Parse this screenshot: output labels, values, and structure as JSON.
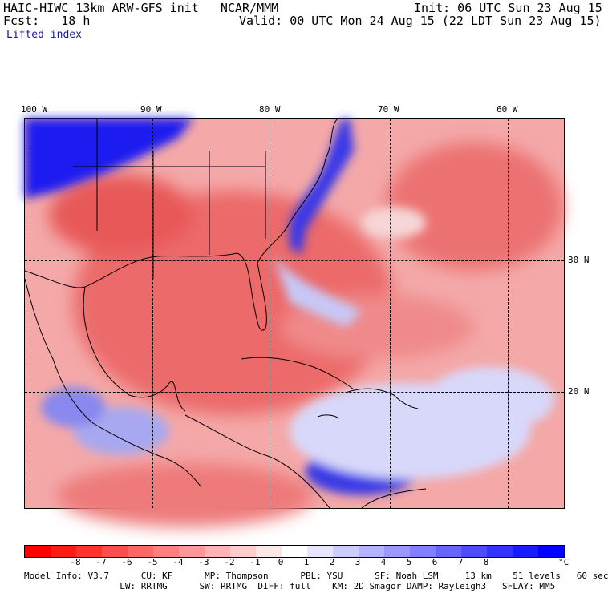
{
  "header": {
    "model_line": "HAIC-HIWC 13km ARW-GFS init   NCAR/MMM",
    "fcst_line": "Fcst:   18 h",
    "init_line": "Init: 06 UTC Sun 23 Aug 15",
    "valid_line": "Valid: 00 UTC Mon 24 Aug 15 (22 LDT Sun 23 Aug 15)",
    "field": "Lifted index"
  },
  "map": {
    "lon_labels": [
      "100 W",
      "90 W",
      "80 W",
      "70 W",
      "60 W"
    ],
    "lat_labels": [
      "30 N",
      "20 N"
    ],
    "colors": {
      "positive_strong": "#1010e0",
      "positive_mid": "#7070f0",
      "positive_light": "#c8c8f8",
      "negative_light": "#f8c8c8",
      "negative_mid": "#f07070",
      "negative_strong": "#e02020"
    }
  },
  "colorbar": {
    "unit": "°C",
    "labels": [
      "-8",
      "-7",
      "-6",
      "-5",
      "-4",
      "-3",
      "-2",
      "-1",
      "0",
      "1",
      "2",
      "3",
      "4",
      "5",
      "6",
      "7",
      "8"
    ],
    "colors": [
      "#ff0000",
      "#ff1a1a",
      "#ff3333",
      "#ff4d4d",
      "#ff6666",
      "#ff8080",
      "#ff9999",
      "#ffb3b3",
      "#ffcccc",
      "#ffe6e6",
      "#ffffff",
      "#e6e6ff",
      "#ccccff",
      "#b3b3ff",
      "#9999ff",
      "#8080ff",
      "#6666ff",
      "#4d4dff",
      "#3333ff",
      "#1a1aff",
      "#0000ff"
    ]
  },
  "info": {
    "line1": "Model Info: V3.7      CU: KF      MP: Thompson      PBL: YSU      SF: Noah LSM     13 km    51 levels   60 sec",
    "line2": "                  LW: RRTMG      SW: RRTMG  DIFF: full    KM: 2D Smagor DAMP: Rayleigh3   SFLAY: MM5"
  }
}
